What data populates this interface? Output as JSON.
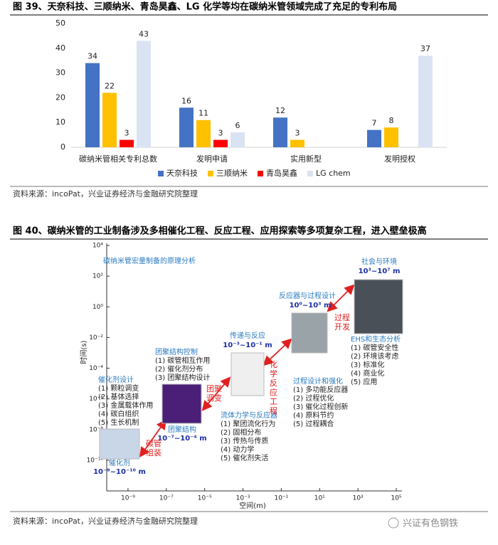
{
  "figure39": {
    "caption": "图 39、天奈科技、三顺纳米、青岛昊鑫、LG 化学等均在碳纳米管领域完成了充足的专利布局",
    "source": "资料来源：incoPat，兴业证券经济与金融研究院整理"
  },
  "chart_data": {
    "type": "bar",
    "categories": [
      "碳纳米管相关专利总数",
      "发明申请",
      "实用新型",
      "发明授权"
    ],
    "series": [
      {
        "name": "天奈科技",
        "color": "#4472c4",
        "values": [
          34,
          16,
          12,
          7
        ]
      },
      {
        "name": "三顺纳米",
        "color": "#ffc000",
        "values": [
          22,
          11,
          3,
          8
        ]
      },
      {
        "name": "青岛昊鑫",
        "color": "#ff0000",
        "values": [
          3,
          3,
          null,
          null
        ]
      },
      {
        "name": "LG chem",
        "color": "#dae3f3",
        "values": [
          43,
          6,
          null,
          37
        ]
      }
    ],
    "ylim": [
      0,
      50
    ],
    "yticks": [
      0,
      10,
      20,
      30,
      40,
      50
    ],
    "grid": false,
    "legend": "bottom"
  },
  "figure40": {
    "caption": "图 40、碳纳米管的工业制备涉及多相催化工程、反应工程、应用探索等多项复杂工程，进入壁垒极高",
    "source": "资料来源：incoPat，兴业证券经济与金融研究院整理",
    "diagram": {
      "title": "碳纳米管宏量制备的原理分析",
      "xlabel": "空间(m)",
      "ylabel": "时间(s)",
      "xscale": "log",
      "yscale": "log",
      "xlim": [
        1e-10,
        100000
      ],
      "ylim": [
        1e-12,
        10000
      ],
      "xticks": [
        {
          "value": 1e-09,
          "label": "10⁻⁹"
        },
        {
          "value": 1e-07,
          "label": "10⁻⁷"
        },
        {
          "value": 1e-05,
          "label": "10⁻⁵"
        },
        {
          "value": 0.001,
          "label": "10⁻³"
        },
        {
          "value": 0.1,
          "label": "10⁻¹"
        },
        {
          "value": 10,
          "label": "10¹"
        },
        {
          "value": 1000,
          "label": "10³"
        },
        {
          "value": 100000,
          "label": "10⁵"
        }
      ],
      "yticks": [
        {
          "value": 10000,
          "label": "10⁴"
        },
        {
          "value": 100,
          "label": "10²"
        },
        {
          "value": 1,
          "label": "10⁰"
        },
        {
          "value": 0.01,
          "label": "10⁻²"
        },
        {
          "value": 0.0001,
          "label": "10⁻⁴"
        },
        {
          "value": 1e-06,
          "label": "10⁻⁶"
        },
        {
          "value": 1e-08,
          "label": "10⁻⁸"
        },
        {
          "value": 1e-10,
          "label": "10⁻¹⁰"
        }
      ],
      "stages": [
        {
          "name": "催化剂",
          "scale": "10⁻⁹~10⁻¹⁰ m",
          "heading": "催化剂设计",
          "items": [
            "(1) 颗粒调变",
            "(2) 基体选择",
            "(3) 金属载体作用",
            "(4) 碳白组织",
            "(5) 生长机制"
          ]
        },
        {
          "name": "团聚结构",
          "scale": "10⁻⁷~10⁻⁴ m",
          "heading": "团聚结构控制",
          "items": [
            "(1) 碳管相互作用",
            "(2) 催化剂分布",
            "(3) 团聚结构设计"
          ]
        },
        {
          "name": "传递与反应",
          "scale": "10⁻³~10⁻¹ m",
          "heading": "流体力学与反应器",
          "items": [
            "(1) 聚团流化行为",
            "(2) 固相分布",
            "(3) 传热与传质",
            "(4) 动力学",
            "(5) 催化剂失活"
          ]
        },
        {
          "name": "反应器与过程设计",
          "scale": "10⁰~10³ m",
          "heading": "过程设计和强化",
          "items": [
            "(1) 多功能反应器",
            "(2) 过程优化",
            "(3) 催化过程创新",
            "(4) 原料节约",
            "(5) 过程耦合"
          ]
        },
        {
          "name": "社会与环境",
          "scale": "10³~10⁷ m",
          "heading": "EHS和生态分析",
          "items": [
            "(1) 碳管安全性",
            "(2) 环境该考虑",
            "(3) 标准化",
            "(4) 商业化",
            "(5) 应用"
          ]
        }
      ],
      "transitions": [
        "碳管组装",
        "团聚调变",
        "化学反应工程",
        "过程开发"
      ]
    }
  },
  "watermark": "兴证有色钢铁"
}
